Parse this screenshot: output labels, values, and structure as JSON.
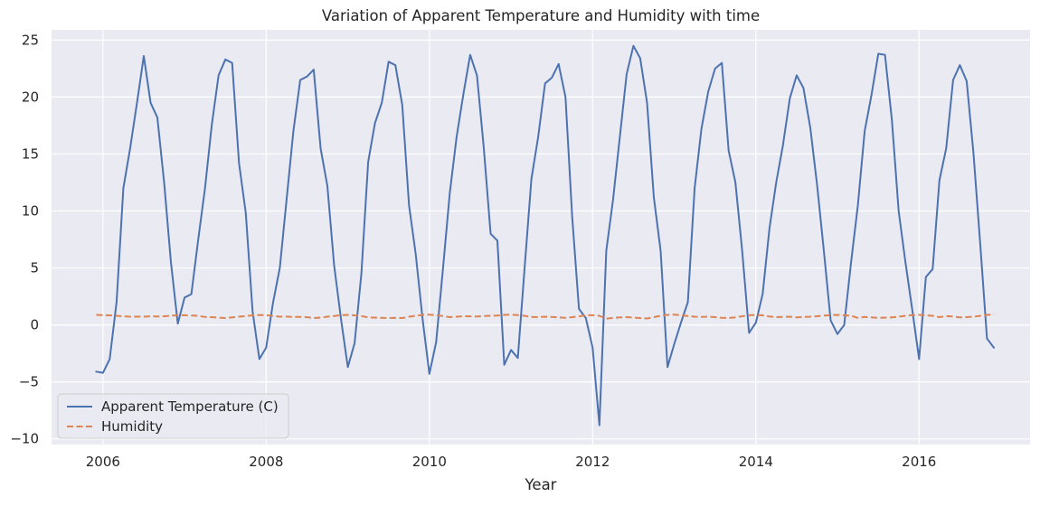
{
  "chart_data": {
    "type": "line",
    "title": "Variation of Apparent Temperature and Humidity with time",
    "xlabel": "Year",
    "ylabel": "",
    "xlim": [
      2005.37,
      2017.36
    ],
    "ylim": [
      -10.5,
      25.9
    ],
    "x_ticks": [
      2006,
      2008,
      2010,
      2012,
      2014,
      2016
    ],
    "x_tick_labels": [
      "2006",
      "2008",
      "2010",
      "2012",
      "2014",
      "2016"
    ],
    "y_ticks": [
      -10,
      -5,
      0,
      5,
      10,
      15,
      20,
      25
    ],
    "y_tick_labels": [
      "−10",
      "−5",
      "0",
      "5",
      "10",
      "15",
      "20",
      "25"
    ],
    "grid": true,
    "background_color": "#eaeaf2",
    "legend_position": "lower-left",
    "x": [
      2005.917,
      2006.0,
      2006.083,
      2006.167,
      2006.25,
      2006.333,
      2006.417,
      2006.5,
      2006.583,
      2006.667,
      2006.75,
      2006.833,
      2006.917,
      2007.0,
      2007.083,
      2007.167,
      2007.25,
      2007.333,
      2007.417,
      2007.5,
      2007.583,
      2007.667,
      2007.75,
      2007.833,
      2007.917,
      2008.0,
      2008.083,
      2008.167,
      2008.25,
      2008.333,
      2008.417,
      2008.5,
      2008.583,
      2008.667,
      2008.75,
      2008.833,
      2008.917,
      2009.0,
      2009.083,
      2009.167,
      2009.25,
      2009.333,
      2009.417,
      2009.5,
      2009.583,
      2009.667,
      2009.75,
      2009.833,
      2009.917,
      2010.0,
      2010.083,
      2010.167,
      2010.25,
      2010.333,
      2010.417,
      2010.5,
      2010.583,
      2010.667,
      2010.75,
      2010.833,
      2010.917,
      2011.0,
      2011.083,
      2011.167,
      2011.25,
      2011.333,
      2011.417,
      2011.5,
      2011.583,
      2011.667,
      2011.75,
      2011.833,
      2011.917,
      2012.0,
      2012.083,
      2012.167,
      2012.25,
      2012.333,
      2012.417,
      2012.5,
      2012.583,
      2012.667,
      2012.75,
      2012.833,
      2012.917,
      2013.0,
      2013.083,
      2013.167,
      2013.25,
      2013.333,
      2013.417,
      2013.5,
      2013.583,
      2013.667,
      2013.75,
      2013.833,
      2013.917,
      2014.0,
      2014.083,
      2014.167,
      2014.25,
      2014.333,
      2014.417,
      2014.5,
      2014.583,
      2014.667,
      2014.75,
      2014.833,
      2014.917,
      2015.0,
      2015.083,
      2015.167,
      2015.25,
      2015.333,
      2015.417,
      2015.5,
      2015.583,
      2015.667,
      2015.75,
      2015.833,
      2015.917,
      2016.0,
      2016.083,
      2016.167,
      2016.25,
      2016.333,
      2016.417,
      2016.5,
      2016.583,
      2016.667,
      2016.75,
      2016.833,
      2016.917
    ],
    "series": [
      {
        "name": "Apparent Temperature (C)",
        "color": "#4c72b0",
        "linestyle": "solid",
        "values": [
          -4.1,
          -4.2,
          -3.0,
          2.0,
          12.0,
          15.5,
          19.5,
          23.6,
          19.5,
          18.2,
          12.5,
          5.5,
          0.1,
          2.4,
          2.7,
          7.5,
          12.0,
          17.5,
          21.9,
          23.3,
          23.0,
          14.2,
          9.8,
          1.2,
          -3.0,
          -2.0,
          1.9,
          5.0,
          11.0,
          17.0,
          21.5,
          21.8,
          22.4,
          15.5,
          12.2,
          5.2,
          0.5,
          -3.7,
          -1.6,
          4.5,
          14.3,
          17.7,
          19.5,
          23.1,
          22.8,
          19.3,
          10.5,
          6.2,
          0.5,
          -4.3,
          -1.5,
          5.0,
          11.6,
          16.5,
          20.3,
          23.7,
          21.9,
          15.5,
          8.0,
          7.4,
          -3.5,
          -2.2,
          -2.9,
          5.0,
          12.8,
          16.5,
          21.2,
          21.7,
          22.9,
          20.0,
          9.5,
          1.4,
          0.6,
          -2.0,
          -8.8,
          6.5,
          11.0,
          16.5,
          22.0,
          24.5,
          23.4,
          19.5,
          11.2,
          6.5,
          -3.7,
          -1.7,
          0.2,
          2.0,
          12.0,
          17.2,
          20.5,
          22.5,
          23.0,
          15.3,
          12.5,
          6.5,
          -0.7,
          0.2,
          2.7,
          8.5,
          12.5,
          15.8,
          19.9,
          21.9,
          20.8,
          17.3,
          12.3,
          6.5,
          0.4,
          -0.8,
          0.0,
          5.5,
          10.5,
          17.0,
          20.2,
          23.8,
          23.7,
          18.0,
          10.0,
          5.5,
          1.3,
          -3.0,
          4.2,
          4.9,
          12.7,
          15.5,
          21.5,
          22.8,
          21.4,
          15.0,
          7.0,
          -1.2,
          -2.0
        ]
      },
      {
        "name": "Humidity",
        "color": "#dd8452",
        "linestyle": "dashed",
        "values": [
          0.88,
          0.86,
          0.84,
          0.8,
          0.75,
          0.72,
          0.73,
          0.72,
          0.75,
          0.74,
          0.76,
          0.8,
          0.86,
          0.85,
          0.83,
          0.8,
          0.7,
          0.68,
          0.64,
          0.6,
          0.66,
          0.72,
          0.78,
          0.84,
          0.87,
          0.86,
          0.8,
          0.72,
          0.73,
          0.7,
          0.7,
          0.68,
          0.6,
          0.64,
          0.72,
          0.78,
          0.86,
          0.88,
          0.84,
          0.78,
          0.66,
          0.64,
          0.62,
          0.6,
          0.62,
          0.6,
          0.72,
          0.8,
          0.88,
          0.9,
          0.85,
          0.78,
          0.68,
          0.72,
          0.76,
          0.75,
          0.74,
          0.78,
          0.8,
          0.82,
          0.88,
          0.9,
          0.86,
          0.8,
          0.7,
          0.68,
          0.72,
          0.7,
          0.66,
          0.62,
          0.68,
          0.75,
          0.86,
          0.85,
          0.8,
          0.55,
          0.62,
          0.66,
          0.68,
          0.64,
          0.6,
          0.56,
          0.68,
          0.8,
          0.88,
          0.9,
          0.86,
          0.78,
          0.72,
          0.7,
          0.72,
          0.68,
          0.62,
          0.6,
          0.66,
          0.76,
          0.85,
          0.88,
          0.84,
          0.74,
          0.68,
          0.7,
          0.72,
          0.66,
          0.7,
          0.72,
          0.76,
          0.82,
          0.86,
          0.88,
          0.84,
          0.8,
          0.62,
          0.7,
          0.66,
          0.62,
          0.64,
          0.66,
          0.72,
          0.8,
          0.86,
          0.88,
          0.84,
          0.8,
          0.68,
          0.78,
          0.74,
          0.66,
          0.68,
          0.72,
          0.8,
          0.88,
          0.92
        ]
      }
    ]
  }
}
